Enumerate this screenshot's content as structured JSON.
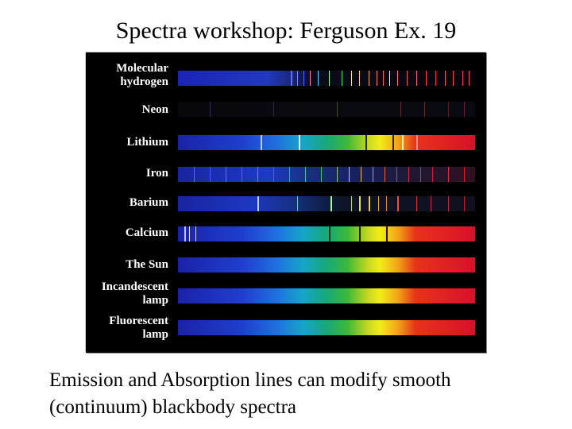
{
  "title": "Spectra workshop:  Ferguson Ex. 19",
  "caption_line1": "Emission and Absorption lines can modify smooth",
  "caption_line2": "(continuum) blackbody spectra",
  "spectra": [
    {
      "label": "Molecular hydrogen",
      "kind": "emission-dense"
    },
    {
      "label": "Neon",
      "kind": "emission-faint"
    },
    {
      "label": "Lithium",
      "kind": "continuum-absorption"
    },
    {
      "label": "Iron",
      "kind": "emission-lines"
    },
    {
      "label": "Barium",
      "kind": "emission-lines"
    },
    {
      "label": "Calcium",
      "kind": "continuum-absorption"
    },
    {
      "label": "The Sun",
      "kind": "continuum"
    },
    {
      "label": "Incandescent lamp",
      "kind": "continuum"
    },
    {
      "label": "Fluorescent lamp",
      "kind": "continuum"
    }
  ]
}
